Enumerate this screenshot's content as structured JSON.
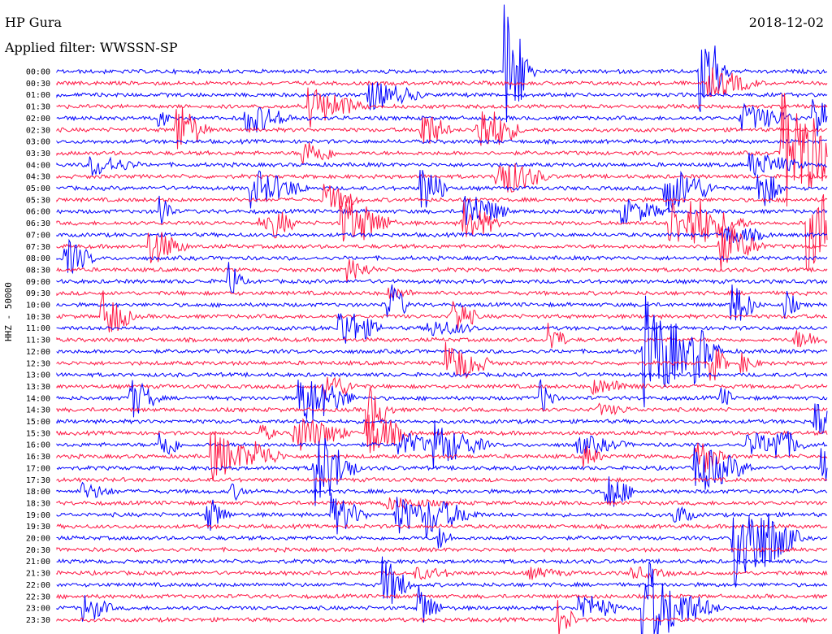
{
  "header": {
    "station": "HP Gura",
    "date": "2018-12-02",
    "filter": "Applied filter: WWSSN-SP"
  },
  "axis": {
    "channel_label": "HHZ - 50000"
  },
  "colors": {
    "trace_a": "#0000ff",
    "trace_b": "#ff1744",
    "background": "#ffffff"
  },
  "chart_data": {
    "type": "line",
    "rows": [
      "00:00",
      "00:30",
      "01:00",
      "01:30",
      "02:00",
      "02:30",
      "03:00",
      "03:30",
      "04:00",
      "04:30",
      "05:00",
      "05:30",
      "06:00",
      "06:30",
      "07:00",
      "07:30",
      "08:00",
      "08:30",
      "09:00",
      "09:30",
      "10:00",
      "10:30",
      "11:00",
      "11:30",
      "12:00",
      "12:30",
      "13:00",
      "13:30",
      "14:00",
      "14:30",
      "15:00",
      "15:30",
      "16:00",
      "16:30",
      "17:00",
      "17:30",
      "18:00",
      "18:30",
      "19:00",
      "19:30",
      "20:00",
      "20:30",
      "21:00",
      "21:30",
      "22:00",
      "22:30",
      "23:00",
      "23:30"
    ],
    "row_colors": [
      "trace_a",
      "trace_b"
    ],
    "grid": false
  }
}
